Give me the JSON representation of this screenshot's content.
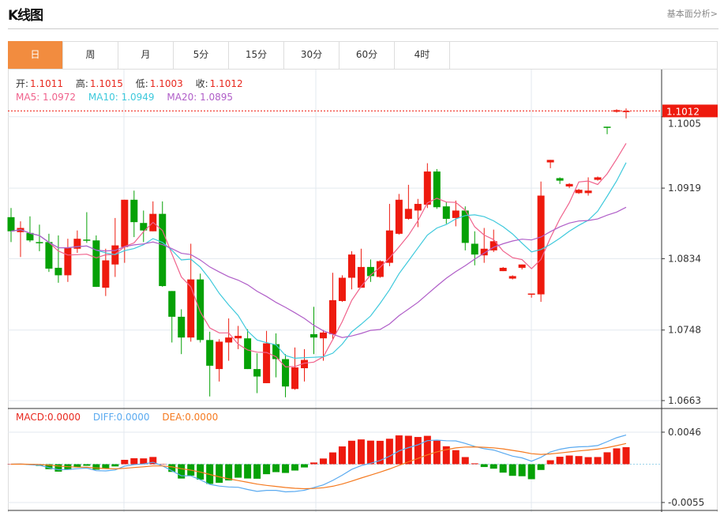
{
  "header": {
    "title": "K线图",
    "link": "基本面分析>"
  },
  "tabs": [
    {
      "label": "日",
      "active": true
    },
    {
      "label": "周"
    },
    {
      "label": "月"
    },
    {
      "label": "5分"
    },
    {
      "label": "15分"
    },
    {
      "label": "30分"
    },
    {
      "label": "60分"
    },
    {
      "label": "4时"
    }
  ],
  "ohlc_legend": {
    "open_label": "开:",
    "open": "1.1011",
    "high_label": "高:",
    "high": "1.1015",
    "low_label": "低:",
    "low": "1.1003",
    "close_label": "收:",
    "close": "1.1012"
  },
  "ma_legend": {
    "ma5": "MA5: 1.0972",
    "ma10": "MA10: 1.0949",
    "ma20": "MA20: 1.0895"
  },
  "macd_legend": {
    "macd": "MACD:0.0000",
    "diff": "DIFF:0.0000",
    "dea": "DEA:0.0000"
  },
  "colors": {
    "up": "#ee1a0e",
    "down": "#06a106",
    "ma5": "#f0628c",
    "ma10": "#3ec9dc",
    "ma20": "#b05ec8",
    "diff": "#5aaaf0",
    "dea": "#f57a20",
    "accent": "#F28C3F"
  },
  "chart_data": [
    {
      "type": "candlestick",
      "ylim": [
        1.065,
        1.105
      ],
      "yticks": [
        "1.1005",
        "1.0919",
        "1.0834",
        "1.0748",
        "1.0663"
      ],
      "last_price": "1.1012",
      "ma_periods": [
        5,
        10,
        20
      ],
      "grid": true,
      "candles_ohlc": [
        [
          1.0884,
          1.0895,
          1.0854,
          1.0867
        ],
        [
          1.0866,
          1.0879,
          1.0836,
          1.0871
        ],
        [
          1.0865,
          1.0885,
          1.0854,
          1.0856
        ],
        [
          1.0854,
          1.0875,
          1.0843,
          1.0853
        ],
        [
          1.0854,
          1.0864,
          1.0818,
          1.0822
        ],
        [
          1.0823,
          1.0862,
          1.0805,
          1.0814
        ],
        [
          1.0814,
          1.0858,
          1.0806,
          1.0847
        ],
        [
          1.0846,
          1.0868,
          1.0841,
          1.0858
        ],
        [
          1.0857,
          1.089,
          1.0853,
          1.0856
        ],
        [
          1.0856,
          1.0862,
          1.08,
          1.08
        ],
        [
          1.0799,
          1.0846,
          1.0789,
          1.0832
        ],
        [
          1.0827,
          1.0883,
          1.0812,
          1.085
        ],
        [
          1.0848,
          1.0905,
          1.0829,
          1.0905
        ],
        [
          1.0905,
          1.0916,
          1.086,
          1.0878
        ],
        [
          1.0877,
          1.0892,
          1.0854,
          1.0868
        ],
        [
          1.0867,
          1.0903,
          1.0867,
          1.0888
        ],
        [
          1.0888,
          1.0903,
          1.08,
          1.0801
        ],
        [
          1.0795,
          1.0795,
          1.0733,
          1.0764
        ],
        [
          1.0764,
          1.0773,
          1.0719,
          1.0739
        ],
        [
          1.0739,
          1.0852,
          1.0734,
          1.0809
        ],
        [
          1.0809,
          1.0816,
          1.0733,
          1.0736
        ],
        [
          1.0736,
          1.0746,
          1.0668,
          1.0705
        ],
        [
          1.0701,
          1.0737,
          1.0686,
          1.0734
        ],
        [
          1.0733,
          1.0762,
          1.0711,
          1.0739
        ],
        [
          1.0738,
          1.0753,
          1.0725,
          1.0741
        ],
        [
          1.0738,
          1.0749,
          1.0701,
          1.0701
        ],
        [
          1.0701,
          1.072,
          1.0672,
          1.0692
        ],
        [
          1.0684,
          1.0747,
          1.0684,
          1.0732
        ],
        [
          1.0731,
          1.0744,
          1.0691,
          1.0713
        ],
        [
          1.0713,
          1.0719,
          1.0667,
          1.068
        ],
        [
          1.0677,
          1.0727,
          1.0676,
          1.0703
        ],
        [
          1.0702,
          1.0725,
          1.0686,
          1.0712
        ],
        [
          1.0743,
          1.0776,
          1.0719,
          1.0739
        ],
        [
          1.0738,
          1.0748,
          1.0711,
          1.0745
        ],
        [
          1.0743,
          1.0817,
          1.0737,
          1.0784
        ],
        [
          1.0783,
          1.0814,
          1.0782,
          1.0811
        ],
        [
          1.0811,
          1.0843,
          1.0797,
          1.0839
        ],
        [
          1.0799,
          1.0846,
          1.0799,
          1.0824
        ],
        [
          1.0824,
          1.0833,
          1.0806,
          1.0813
        ],
        [
          1.0812,
          1.0832,
          1.0811,
          1.0831
        ],
        [
          1.0829,
          1.09,
          1.0825,
          1.0868
        ],
        [
          1.0864,
          1.0912,
          1.0863,
          1.0905
        ],
        [
          1.0882,
          1.0923,
          1.0881,
          1.0894
        ],
        [
          1.0892,
          1.0906,
          1.0872,
          1.09
        ],
        [
          1.0899,
          1.0949,
          1.0895,
          1.0939
        ],
        [
          1.0939,
          1.0942,
          1.0894,
          1.0896
        ],
        [
          1.0897,
          1.0902,
          1.0876,
          1.0882
        ],
        [
          1.0883,
          1.0904,
          1.0873,
          1.0892
        ],
        [
          1.0892,
          1.0897,
          1.0844,
          1.0853
        ],
        [
          1.0852,
          1.0867,
          1.0826,
          1.0839
        ],
        [
          1.0838,
          1.0871,
          1.0829,
          1.0846
        ],
        [
          1.0844,
          1.0869,
          1.0842,
          1.0855
        ],
        [
          1.0819,
          1.0824,
          1.0819,
          1.0823
        ],
        [
          1.081,
          1.0814,
          1.0809,
          1.0813
        ],
        [
          1.0823,
          1.0827,
          1.0821,
          1.0827
        ],
        [
          1.0791,
          1.0792,
          1.0787,
          1.0792
        ],
        [
          1.0791,
          1.0927,
          1.0782,
          1.091
        ],
        [
          1.095,
          1.0953,
          1.0943,
          1.0953
        ],
        [
          1.0931,
          1.0932,
          1.0924,
          1.0928
        ],
        [
          1.0921,
          1.0925,
          1.0919,
          1.0924
        ],
        [
          1.0913,
          1.0918,
          1.0912,
          1.0917
        ],
        [
          1.0913,
          1.0932,
          1.091,
          1.0916
        ],
        [
          1.0929,
          1.0933,
          1.0928,
          1.0932
        ],
        [
          1.0993,
          1.0993,
          1.0984,
          1.0992
        ],
        [
          1.1011,
          1.1014,
          1.101,
          1.1013
        ],
        [
          1.1011,
          1.1015,
          1.1003,
          1.1012
        ]
      ]
    },
    {
      "type": "bar+line",
      "indicator": "MACD",
      "ylim": [
        -0.0055,
        0.0046
      ],
      "yticks": [
        "0.0046",
        "-0.0055"
      ]
    }
  ]
}
